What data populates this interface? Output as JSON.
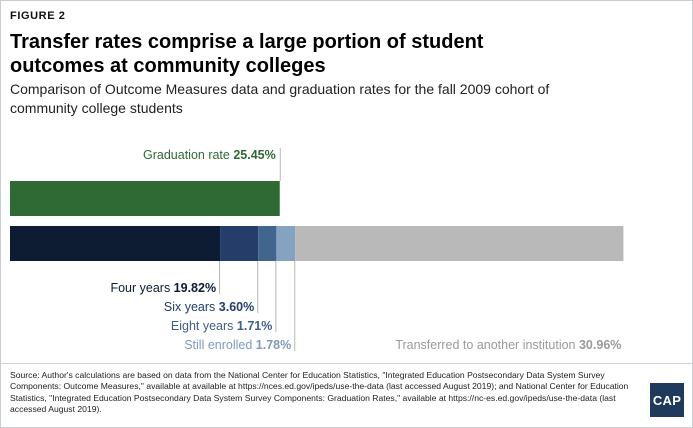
{
  "figure_label": "FIGURE 2",
  "title": "Transfer rates comprise a large portion of student outcomes at community colleges",
  "subtitle": "Comparison of Outcome Measures data and graduation rates for the fall 2009 cohort of community college students",
  "source": "Source: Author's calculations are based on data from the National Center for Education Statistics, \"Integrated Education Postsecondary Data System Survey Components: Outcome Measures,\" available at available at https://nces.ed.gov/ipeds/use-the-data (last accessed August 2019); and National Center for Education Statistics, \"Integrated Education Postsecondary Data System Survey Components: Graduation Rates,\" available at https://nc-es.ed.gov/ipeds/use-the-data (last accessed August 2019).",
  "logo_text": "CAP",
  "chart_data": {
    "type": "bar",
    "orientation": "horizontal",
    "xlim": [
      0,
      58.87
    ],
    "bars": [
      {
        "name": "Graduation rate",
        "segments": [
          {
            "label": "Graduation rate",
            "value": 25.45,
            "value_text": "25.45%",
            "color": "#2f6a35",
            "label_color": "#2f6a35"
          }
        ]
      },
      {
        "name": "Outcome Measures",
        "segments": [
          {
            "label": "Four years",
            "value": 19.82,
            "value_text": "19.82%",
            "color": "#0e1c33",
            "label_color": "#0e1c33"
          },
          {
            "label": "Six years",
            "value": 3.6,
            "value_text": "3.60%",
            "color": "#243d69",
            "label_color": "#243d69"
          },
          {
            "label": "Eight years",
            "value": 1.71,
            "value_text": "1.71%",
            "color": "#41658d",
            "label_color": "#3f5f86"
          },
          {
            "label": "Still enrolled",
            "value": 1.78,
            "value_text": "1.78%",
            "color": "#86a2c1",
            "label_color": "#7e9bbb"
          },
          {
            "label": "Transferred to another institution",
            "value": 30.96,
            "value_text": "30.96%",
            "color": "#b9b9b9",
            "label_color": "#9a9a9a"
          }
        ]
      }
    ],
    "grid": false,
    "legend": "none"
  }
}
